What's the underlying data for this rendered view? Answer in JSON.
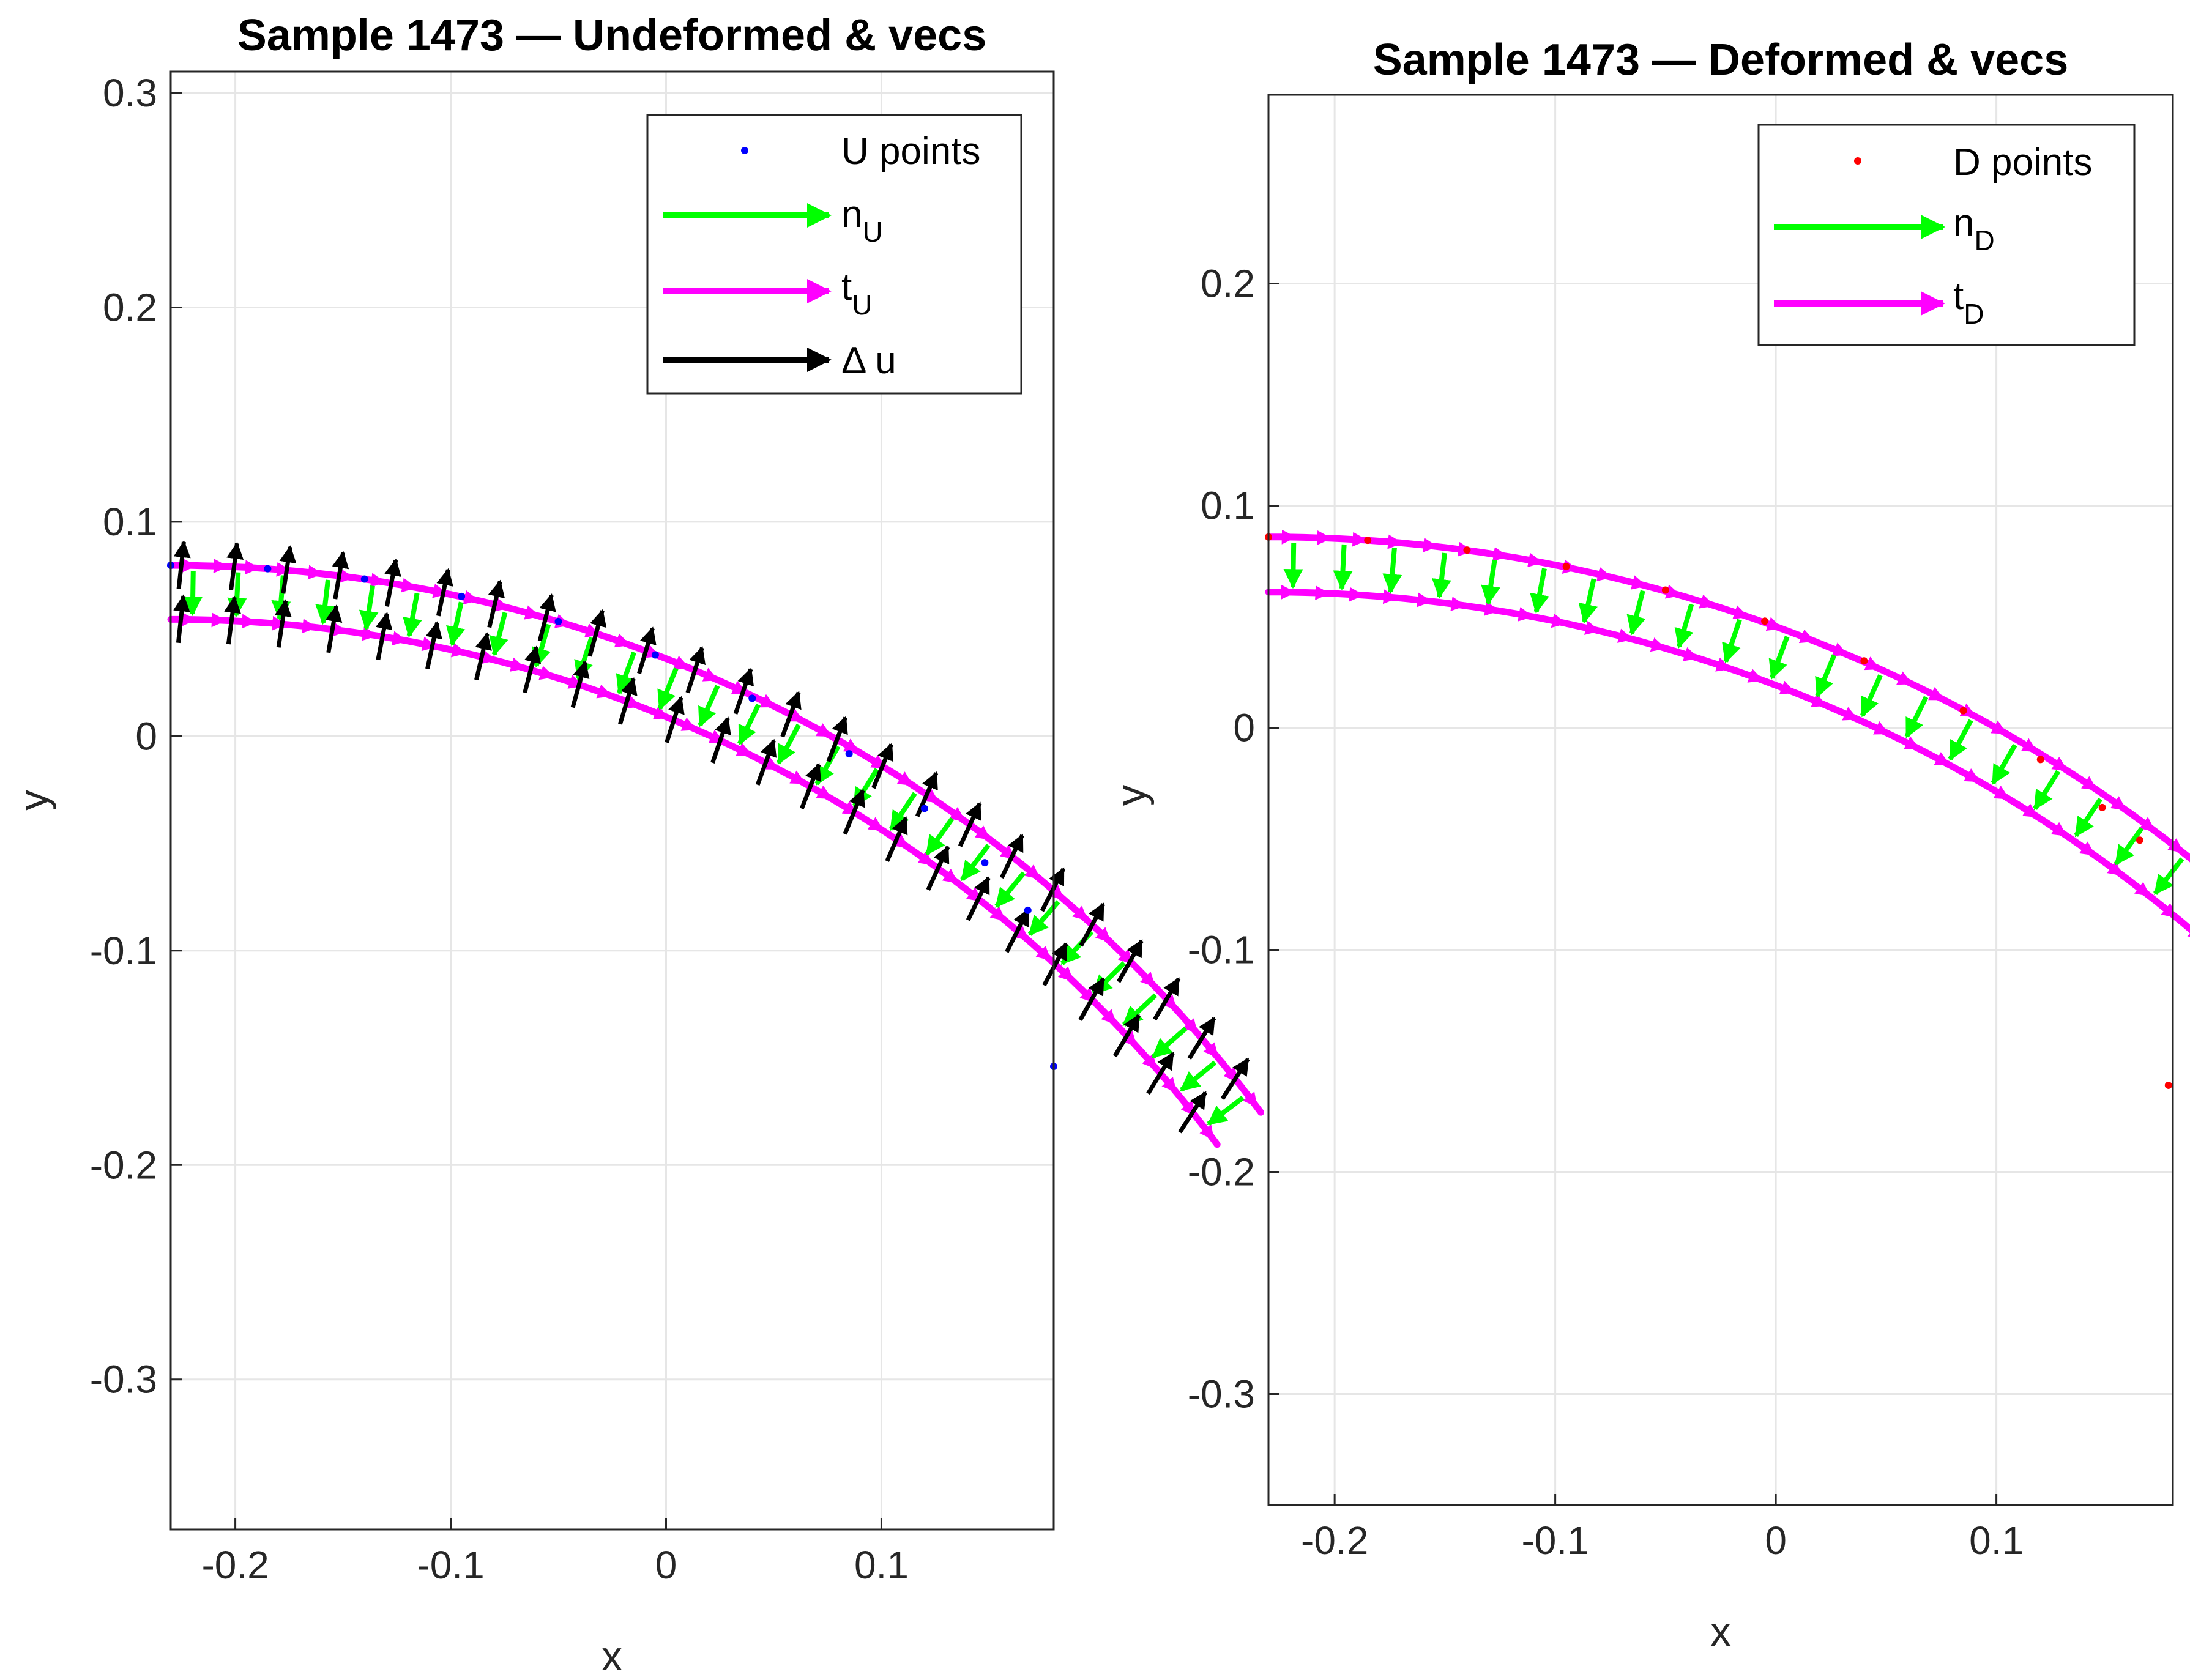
{
  "colors": {
    "points_undeformed": "#0000ff",
    "points_deformed": "#ff0000",
    "normal": "#00ff00",
    "tangent": "#ff00ff",
    "displacement": "#000000",
    "grid": "#e6e6e6",
    "axis": "#262626"
  },
  "chart_data": [
    {
      "type": "scatter",
      "subtype": "points-with-quiver",
      "title": "Sample 1473 — Undeformed & vecs",
      "xlabel": "x",
      "ylabel": "y",
      "xlim": [
        -0.23,
        0.18
      ],
      "ylim": [
        -0.37,
        0.31
      ],
      "xticks": [
        -0.2,
        -0.1,
        0,
        0.1
      ],
      "xtick_labels": [
        "-0.2",
        "-0.1",
        "0",
        "0.1"
      ],
      "yticks": [
        -0.3,
        -0.2,
        -0.1,
        0,
        0.1,
        0.2,
        0.3
      ],
      "ytick_labels": [
        "-0.3",
        "-0.2",
        "-0.1",
        "0",
        "0.1",
        "0.2",
        "0.3"
      ],
      "grid": true,
      "legend_position": "top-right",
      "legend": [
        {
          "label": "U points",
          "sub": "",
          "kind": "marker",
          "color": "#0000ff"
        },
        {
          "label": "n",
          "sub": "U",
          "kind": "arrow",
          "color": "#00ff00"
        },
        {
          "label": "t",
          "sub": "U",
          "kind": "arrow",
          "color": "#ff00ff"
        },
        {
          "label": "Δ u",
          "sub": "",
          "kind": "arrow",
          "color": "#000000"
        }
      ],
      "geometry": {
        "arc_center": [
          -0.23,
          -0.55
        ],
        "outer_radius": 0.6297,
        "inner_radius": 0.6045,
        "angle_start_deg": 90,
        "angle_end_deg": 36.5,
        "vector_samples": 28
      },
      "series": [
        {
          "name": "U points",
          "x": [
            -0.23,
            -0.185,
            -0.14,
            -0.095,
            -0.05,
            -0.005,
            0.04,
            0.085,
            0.12,
            0.148,
            0.168,
            0.18
          ],
          "y": [
            0.0797,
            0.0781,
            0.0733,
            0.0652,
            0.0535,
            0.0379,
            0.0177,
            -0.0082,
            -0.0337,
            -0.059,
            -0.0812,
            -0.154
          ]
        },
        {
          "name": "n_U",
          "description": "unit inward normals along the strip, magnitude ~0.012"
        },
        {
          "name": "t_U",
          "description": "tangent vectors along both boundaries"
        },
        {
          "name": "Δ u",
          "description": "displacement vectors at inner and outer boundary, roughly outward, magnitude ~0.02"
        }
      ]
    },
    {
      "type": "scatter",
      "subtype": "points-with-quiver",
      "title": "Sample 1473 — Deformed & vecs",
      "xlabel": "x",
      "ylabel": "y",
      "xlim": [
        -0.23,
        0.18
      ],
      "ylim": [
        -0.35,
        0.285
      ],
      "xticks": [
        -0.2,
        -0.1,
        0,
        0.1
      ],
      "xtick_labels": [
        "-0.2",
        "-0.1",
        "0",
        "0.1"
      ],
      "yticks": [
        -0.3,
        -0.2,
        -0.1,
        0,
        0.1,
        0.2
      ],
      "ytick_labels": [
        "-0.3",
        "-0.2",
        "-0.1",
        "0",
        "0.1",
        "0.2"
      ],
      "grid": true,
      "legend_position": "top-right",
      "legend": [
        {
          "label": "D points",
          "sub": "",
          "kind": "marker",
          "color": "#ff0000"
        },
        {
          "label": "n",
          "sub": "D",
          "kind": "arrow",
          "color": "#00ff00"
        },
        {
          "label": "t",
          "sub": "D",
          "kind": "arrow",
          "color": "#ff00ff"
        }
      ],
      "geometry": {
        "arc_center": [
          -0.23,
          -0.59
        ],
        "outer_radius": 0.6759,
        "inner_radius": 0.6511,
        "angle_start_deg": 90,
        "angle_end_deg": 35.5,
        "vector_samples": 28
      },
      "series": [
        {
          "name": "D points",
          "x": [
            -0.23,
            -0.185,
            -0.14,
            -0.095,
            -0.05,
            -0.005,
            0.04,
            0.085,
            0.12,
            0.148,
            0.165,
            0.178
          ],
          "y": [
            0.0859,
            0.0844,
            0.08,
            0.0726,
            0.062,
            0.048,
            0.0301,
            0.0077,
            -0.0143,
            -0.0359,
            -0.0506,
            -0.161
          ]
        },
        {
          "name": "n_D",
          "description": "unit normals along the strip, magnitude ~0.012"
        },
        {
          "name": "t_D",
          "description": "tangent vectors along both boundaries"
        }
      ]
    }
  ]
}
